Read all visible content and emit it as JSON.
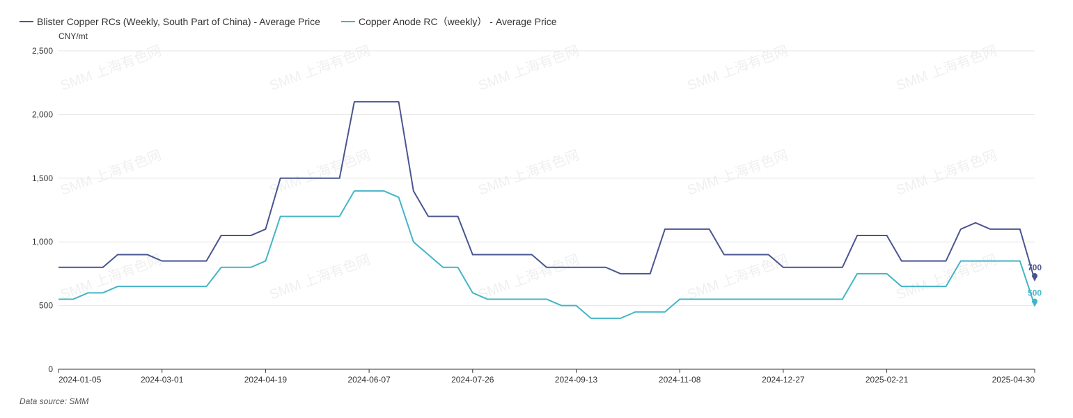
{
  "chart_data": {
    "type": "line",
    "title": "",
    "xlabel": "",
    "ylabel": "CNY/mt",
    "ylim": [
      0,
      2500
    ],
    "y_ticks": [
      0,
      500,
      1000,
      1500,
      2000,
      2500
    ],
    "y_tick_labels": [
      "0",
      "500",
      "1,000",
      "1,500",
      "2,000",
      "2,500"
    ],
    "x_tick_labels": [
      "2024-01-05",
      "2024-03-01",
      "2024-04-19",
      "2024-06-07",
      "2024-07-26",
      "2024-09-13",
      "2024-11-08",
      "2024-12-27",
      "2025-02-21",
      "2025-04-30"
    ],
    "x_tick_indices": [
      0,
      7,
      14,
      21,
      28,
      35,
      42,
      49,
      56,
      66
    ],
    "x_count": 67,
    "grid": true,
    "legend_position": "top-left",
    "series": [
      {
        "name": "Blister Copper RCs (Weekly, South Part of China) - Average Price",
        "color": "#4a5590",
        "end_label": "700",
        "values": [
          800,
          800,
          800,
          800,
          900,
          900,
          900,
          850,
          850,
          850,
          850,
          1050,
          1050,
          1050,
          1100,
          1500,
          1500,
          1500,
          1500,
          1500,
          2100,
          2100,
          2100,
          2100,
          1400,
          1200,
          1200,
          1200,
          900,
          900,
          900,
          900,
          900,
          800,
          800,
          800,
          800,
          800,
          750,
          750,
          750,
          1100,
          1100,
          1100,
          1100,
          900,
          900,
          900,
          900,
          800,
          800,
          800,
          800,
          800,
          1050,
          1050,
          1050,
          850,
          850,
          850,
          850,
          1100,
          1150,
          1100,
          1100,
          1100,
          700
        ]
      },
      {
        "name": "Copper Anode RC（weekly） - Average Price",
        "color": "#43b5c6",
        "end_label": "500",
        "values": [
          550,
          550,
          600,
          600,
          650,
          650,
          650,
          650,
          650,
          650,
          650,
          800,
          800,
          800,
          850,
          1200,
          1200,
          1200,
          1200,
          1200,
          1400,
          1400,
          1400,
          1350,
          1000,
          900,
          800,
          800,
          600,
          550,
          550,
          550,
          550,
          550,
          500,
          500,
          400,
          400,
          400,
          450,
          450,
          450,
          550,
          550,
          550,
          550,
          550,
          550,
          550,
          550,
          550,
          550,
          550,
          550,
          750,
          750,
          750,
          650,
          650,
          650,
          650,
          850,
          850,
          850,
          850,
          850,
          500
        ]
      }
    ]
  },
  "footer": {
    "source_label": "Data source:  SMM"
  },
  "watermark_text": "SMM 上海有色网"
}
